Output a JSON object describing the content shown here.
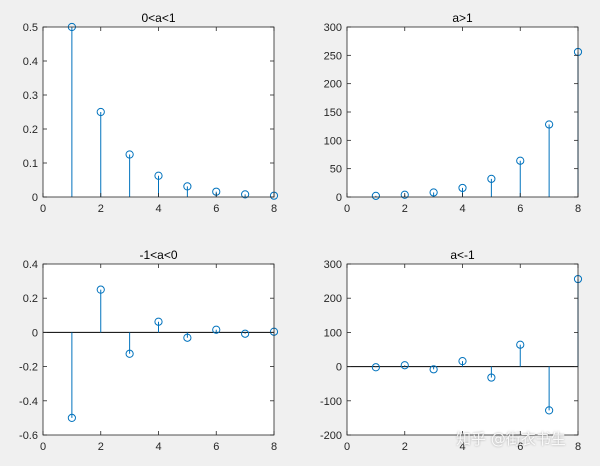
{
  "figure": {
    "background": "#f0f0f0",
    "axes_background": "#ffffff",
    "stem_color": "#0072bd",
    "baseline_color": "#000000",
    "watermark": "知乎 @街衣书生"
  },
  "chart_data": [
    {
      "type": "stem",
      "title": "0<a<1",
      "xlabel": "",
      "ylabel": "",
      "x": [
        1,
        2,
        3,
        4,
        5,
        6,
        7,
        8
      ],
      "y": [
        0.5,
        0.25,
        0.125,
        0.0625,
        0.03125,
        0.015625,
        0.0078125,
        0.00390625
      ],
      "xlim": [
        0,
        8
      ],
      "ylim": [
        0,
        0.5
      ],
      "xticks": [
        0,
        2,
        4,
        6,
        8
      ],
      "yticks": [
        0,
        0.1,
        0.2,
        0.3,
        0.4,
        0.5
      ],
      "xtick_labels": [
        "0",
        "2",
        "4",
        "6",
        "8"
      ],
      "ytick_labels": [
        "0",
        "0.1",
        "0.2",
        "0.3",
        "0.4",
        "0.5"
      ],
      "baseline": false,
      "grid": false
    },
    {
      "type": "stem",
      "title": "a>1",
      "xlabel": "",
      "ylabel": "",
      "x": [
        1,
        2,
        3,
        4,
        5,
        6,
        7,
        8
      ],
      "y": [
        2,
        4,
        8,
        16,
        32,
        64,
        128,
        256
      ],
      "xlim": [
        0,
        8
      ],
      "ylim": [
        0,
        300
      ],
      "xticks": [
        0,
        2,
        4,
        6,
        8
      ],
      "yticks": [
        0,
        50,
        100,
        150,
        200,
        250,
        300
      ],
      "xtick_labels": [
        "0",
        "2",
        "4",
        "6",
        "8"
      ],
      "ytick_labels": [
        "0",
        "50",
        "100",
        "150",
        "200",
        "250",
        "300"
      ],
      "baseline": false,
      "grid": false
    },
    {
      "type": "stem",
      "title": "-1<a<0",
      "xlabel": "",
      "ylabel": "",
      "x": [
        1,
        2,
        3,
        4,
        5,
        6,
        7,
        8
      ],
      "y": [
        -0.5,
        0.25,
        -0.125,
        0.0625,
        -0.03125,
        0.015625,
        -0.0078125,
        0.00390625
      ],
      "xlim": [
        0,
        8
      ],
      "ylim": [
        -0.6,
        0.4
      ],
      "xticks": [
        0,
        2,
        4,
        6,
        8
      ],
      "yticks": [
        -0.6,
        -0.4,
        -0.2,
        0,
        0.2,
        0.4
      ],
      "xtick_labels": [
        "0",
        "2",
        "4",
        "6",
        "8"
      ],
      "ytick_labels": [
        "-0.6",
        "-0.4",
        "-0.2",
        "0",
        "0.2",
        "0.4"
      ],
      "baseline": true,
      "grid": false
    },
    {
      "type": "stem",
      "title": "a<-1",
      "xlabel": "",
      "ylabel": "",
      "x": [
        1,
        2,
        3,
        4,
        5,
        6,
        7,
        8
      ],
      "y": [
        -2,
        4,
        -8,
        16,
        -32,
        64,
        -128,
        256
      ],
      "xlim": [
        0,
        8
      ],
      "ylim": [
        -200,
        300
      ],
      "xticks": [
        0,
        2,
        4,
        6,
        8
      ],
      "yticks": [
        -200,
        -100,
        0,
        100,
        200,
        300
      ],
      "xtick_labels": [
        "0",
        "2",
        "4",
        "6",
        "8"
      ],
      "ytick_labels": [
        "-200",
        "-100",
        "0",
        "100",
        "200",
        "300"
      ],
      "baseline": true,
      "grid": false
    }
  ]
}
